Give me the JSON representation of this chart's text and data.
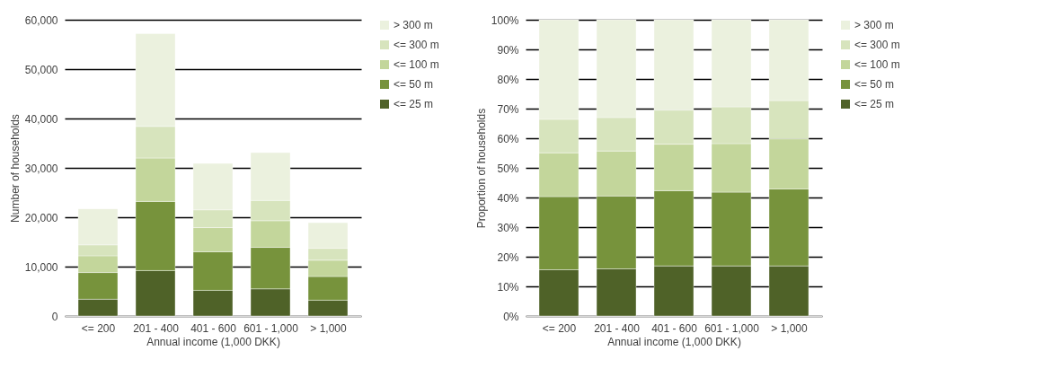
{
  "chart_data": [
    {
      "type": "bar",
      "stacked": true,
      "xlabel": "Annual income (1,000 DKK)",
      "ylabel": "Number of households",
      "categories": [
        "<= 200",
        "201 - 400",
        "401 - 600",
        "601 - 1,000",
        "> 1,000"
      ],
      "series": [
        {
          "name": "<= 25 m",
          "color": "#4f6228",
          "values": [
            3400,
            9200,
            5200,
            5500,
            3200
          ]
        },
        {
          "name": "<= 50 m",
          "color": "#77933c",
          "values": [
            5400,
            14000,
            7800,
            8400,
            4800
          ]
        },
        {
          "name": "<= 100 m",
          "color": "#c3d69b",
          "values": [
            3400,
            8800,
            4900,
            5400,
            3300
          ]
        },
        {
          "name": "<= 300 m",
          "color": "#d7e4bd",
          "values": [
            2200,
            6400,
            3600,
            4100,
            2400
          ]
        },
        {
          "name": "> 300 m",
          "color": "#ebf1de",
          "values": [
            7300,
            18800,
            9400,
            9700,
            5200
          ]
        }
      ],
      "ylim": [
        0,
        60000
      ],
      "yticks": [
        0,
        {
          "value": 10000,
          "label": "10,000"
        },
        {
          "value": 20000,
          "label": "20,000"
        },
        {
          "value": 30000,
          "label": "30,000"
        },
        {
          "value": 40000,
          "label": "40,000"
        },
        {
          "value": 50000,
          "label": "50,000"
        },
        {
          "value": 60000,
          "label": "60,000"
        }
      ],
      "grid": "y",
      "legend": "right"
    },
    {
      "type": "bar",
      "stacked": true,
      "xlabel": "Annual income (1,000 DKK)",
      "ylabel": "Proportion of households",
      "categories": [
        "<= 200",
        "201 - 400",
        "401 - 600",
        "601 - 1,000",
        "> 1,000"
      ],
      "series": [
        {
          "name": "<= 25 m",
          "color": "#4f6228",
          "values": [
            15.6,
            15.9,
            16.9,
            16.9,
            16.9
          ]
        },
        {
          "name": "<= 50 m",
          "color": "#77933c",
          "values": [
            24.7,
            24.6,
            25.4,
            24.9,
            26.0
          ]
        },
        {
          "name": "<= 100 m",
          "color": "#c3d69b",
          "values": [
            14.8,
            15.2,
            15.7,
            16.4,
            16.9
          ]
        },
        {
          "name": "<= 300 m",
          "color": "#d7e4bd",
          "values": [
            11.3,
            11.3,
            11.5,
            12.4,
            12.9
          ]
        },
        {
          "name": "> 300 m",
          "color": "#ebf1de",
          "values": [
            33.6,
            33.0,
            30.5,
            29.4,
            27.3
          ]
        }
      ],
      "ylim": [
        0,
        100
      ],
      "yticks": [
        {
          "value": 0,
          "label": "0%"
        },
        {
          "value": 10,
          "label": "10%"
        },
        {
          "value": 20,
          "label": "20%"
        },
        {
          "value": 30,
          "label": "30%"
        },
        {
          "value": 40,
          "label": "40%"
        },
        {
          "value": 50,
          "label": "50%"
        },
        {
          "value": 60,
          "label": "60%"
        },
        {
          "value": 70,
          "label": "70%"
        },
        {
          "value": 80,
          "label": "80%"
        },
        {
          "value": 90,
          "label": "90%"
        },
        {
          "value": 100,
          "label": "100%"
        }
      ],
      "grid": "y",
      "legend": "right"
    }
  ]
}
